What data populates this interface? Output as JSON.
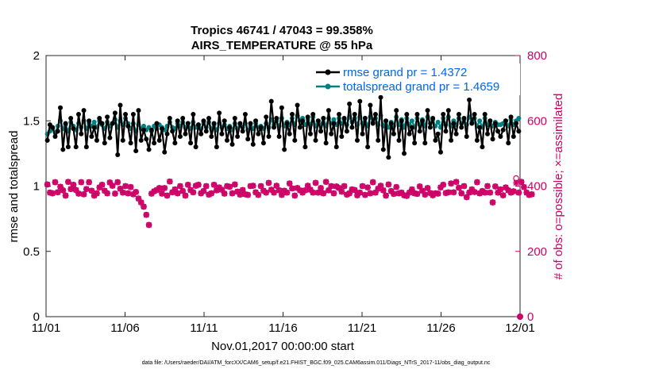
{
  "chart_data": {
    "type": "line",
    "title": "Tropics 46741 / 47043 = 99.358%",
    "subtitle": "AIRS_TEMPERATURE @ 55 hPa",
    "xlabel": "Nov.01,2017 00:00:00 start",
    "ylabel": "rmse and totalspread",
    "ylabel_right": "# of obs: o=possible; ×=assimilated",
    "xlim": [
      0,
      30
    ],
    "ylim": [
      0,
      2
    ],
    "ylim_right": [
      0,
      800
    ],
    "x_tick_values": [
      0,
      5,
      10,
      15,
      20,
      25,
      30
    ],
    "x_tick_labels": [
      "11/01",
      "11/06",
      "11/11",
      "11/16",
      "11/21",
      "11/26",
      "12/01"
    ],
    "y_ticks": [
      "0",
      "0.5",
      "1",
      "1.5",
      "2"
    ],
    "y_tick_values": [
      0,
      0.5,
      1,
      1.5,
      2
    ],
    "y_ticks_right": [
      "0",
      "200",
      "400",
      "600",
      "800"
    ],
    "y_tick_values_right": [
      0,
      200,
      400,
      600,
      800
    ],
    "footer": "data file: /Users/raeder/DAI/ATM_forcXX/CAM6_setup/f.e21.FHIST_BGC.f09_025.CAM6assim.011/Diags_NTrS_2017-11/obs_diag_output.nc",
    "colors": {
      "rmse": "#000000",
      "spread": "#008080",
      "obs": "#cc0066",
      "legend_text": "#0066ee"
    },
    "series": [
      {
        "name": "rmse grand pr = 1.4372",
        "axis": "left",
        "values": [
          1.35,
          1.47,
          1.45,
          1.38,
          1.42,
          1.6,
          1.28,
          1.48,
          1.3,
          1.52,
          1.44,
          1.3,
          1.55,
          1.4,
          1.58,
          1.3,
          1.5,
          1.38,
          1.45,
          1.35,
          1.52,
          1.48,
          1.33,
          1.53,
          1.37,
          1.48,
          1.56,
          1.24,
          1.62,
          1.35,
          1.55,
          1.46,
          1.33,
          1.55,
          1.27,
          1.58,
          1.35,
          1.43,
          1.36,
          1.28,
          1.43,
          1.33,
          1.48,
          1.35,
          1.44,
          1.26,
          1.4,
          1.52,
          1.42,
          1.33,
          1.5,
          1.38,
          1.52,
          1.4,
          1.48,
          1.33,
          1.55,
          1.3,
          1.47,
          1.4,
          1.5,
          1.42,
          1.52,
          1.38,
          1.48,
          1.3,
          1.56,
          1.4,
          1.5,
          1.35,
          1.45,
          1.32,
          1.52,
          1.38,
          1.48,
          1.42,
          1.55,
          1.36,
          1.48,
          1.32,
          1.5,
          1.4,
          1.45,
          1.33,
          1.53,
          1.38,
          1.65,
          1.45,
          1.52,
          1.38,
          1.6,
          1.28,
          1.48,
          1.4,
          1.55,
          1.35,
          1.62,
          1.45,
          1.5,
          1.3,
          1.53,
          1.4,
          1.55,
          1.35,
          1.5,
          1.42,
          1.52,
          1.33,
          1.58,
          1.4,
          1.48,
          1.3,
          1.55,
          1.38,
          1.52,
          1.42,
          1.63,
          1.45,
          1.55,
          1.35,
          1.65,
          1.4,
          1.52,
          1.3,
          1.62,
          1.48,
          1.55,
          1.35,
          1.68,
          1.28,
          1.5,
          1.22,
          1.48,
          1.4,
          1.58,
          1.35,
          1.5,
          1.25,
          1.55,
          1.4,
          1.45,
          1.33,
          1.55,
          1.42,
          1.5,
          1.33,
          1.58,
          1.45,
          1.52,
          1.35,
          1.4,
          1.26,
          1.55,
          1.42,
          1.58,
          1.35,
          1.48,
          1.4,
          1.55,
          1.45,
          1.52,
          1.38,
          1.66,
          1.48,
          1.55,
          1.35,
          1.45,
          1.3,
          1.55,
          1.4,
          1.5,
          1.36,
          1.48,
          1.42,
          1.38,
          1.43,
          1.5,
          1.33,
          1.53,
          1.38,
          1.48,
          1.42
        ]
      },
      {
        "name": "totalspread grand pr = 1.4659",
        "axis": "left",
        "values": [
          1.4,
          1.42,
          1.44,
          1.41,
          1.46,
          1.5,
          1.44,
          1.47,
          1.42,
          1.49,
          1.46,
          1.43,
          1.48,
          1.45,
          1.5,
          1.44,
          1.48,
          1.46,
          1.49,
          1.45,
          1.5,
          1.47,
          1.44,
          1.49,
          1.46,
          1.48,
          1.51,
          1.45,
          1.5,
          1.47,
          1.52,
          1.48,
          1.44,
          1.48,
          1.42,
          1.47,
          1.44,
          1.46,
          1.43,
          1.45,
          1.42,
          1.46,
          1.44,
          1.47,
          1.45,
          1.43,
          1.46,
          1.49,
          1.45,
          1.44,
          1.48,
          1.46,
          1.49,
          1.45,
          1.48,
          1.44,
          1.49,
          1.45,
          1.47,
          1.44,
          1.48,
          1.45,
          1.49,
          1.44,
          1.47,
          1.43,
          1.48,
          1.45,
          1.47,
          1.44,
          1.46,
          1.43,
          1.48,
          1.44,
          1.47,
          1.45,
          1.48,
          1.43,
          1.46,
          1.44,
          1.48,
          1.45,
          1.46,
          1.44,
          1.48,
          1.45,
          1.51,
          1.47,
          1.5,
          1.46,
          1.52,
          1.46,
          1.49,
          1.47,
          1.52,
          1.47,
          1.54,
          1.5,
          1.52,
          1.47,
          1.51,
          1.47,
          1.53,
          1.46,
          1.5,
          1.47,
          1.52,
          1.46,
          1.52,
          1.48,
          1.51,
          1.47,
          1.52,
          1.48,
          1.51,
          1.47,
          1.53,
          1.49,
          1.52,
          1.47,
          1.53,
          1.48,
          1.52,
          1.46,
          1.53,
          1.49,
          1.52,
          1.47,
          1.54,
          1.46,
          1.5,
          1.45,
          1.49,
          1.46,
          1.53,
          1.47,
          1.51,
          1.45,
          1.52,
          1.47,
          1.5,
          1.45,
          1.52,
          1.47,
          1.51,
          1.46,
          1.53,
          1.48,
          1.51,
          1.46,
          1.49,
          1.45,
          1.52,
          1.47,
          1.53,
          1.46,
          1.5,
          1.47,
          1.52,
          1.48,
          1.51,
          1.47,
          1.53,
          1.49,
          1.52,
          1.46,
          1.5,
          1.45,
          1.52,
          1.47,
          1.5,
          1.46,
          1.49,
          1.47,
          1.47,
          1.48,
          1.5,
          1.46,
          1.51,
          1.47,
          1.5,
          1.52
        ]
      },
      {
        "name": "# of obs possible",
        "axis": "right",
        "marker": "o",
        "values": [
          405,
          380,
          378,
          412,
          381,
          398,
          387,
          371,
          413,
          391,
          404,
          388,
          377,
          412,
          375,
          391,
          412,
          386,
          371,
          378,
          396,
          404,
          386,
          378,
          411,
          401,
          377,
          412,
          392,
          380,
          400,
          378,
          397,
          375,
          382,
          362,
          350,
          337,
          312,
          281,
          377,
          384,
          388,
          394,
          377,
          394,
          371,
          414,
          381,
          390,
          378,
          400,
          385,
          371,
          404,
          388,
          381,
          401,
          404,
          378,
          385,
          400,
          374,
          378,
          404,
          387,
          396,
          389,
          377,
          400,
          398,
          378,
          405,
          383,
          374,
          388,
          375,
          373,
          400,
          401,
          381,
          373,
          400,
          386,
          380,
          410,
          389,
          380,
          401,
          387,
          373,
          386,
          380,
          408,
          393,
          371,
          394,
          387,
          380,
          387,
          401,
          389,
          380,
          410,
          380,
          394,
          378,
          413,
          387,
          400,
          378,
          399,
          394,
          383,
          400,
          374,
          378,
          390,
          388,
          372,
          380,
          400,
          373,
          396,
          378,
          412,
          380,
          392,
          401,
          387,
          371,
          405,
          385,
          376,
          397,
          378,
          380,
          372,
          370,
          380,
          390,
          378,
          376,
          399,
          386,
          374,
          394,
          379,
          372,
          378,
          377,
          396,
          404,
          379,
          381,
          408,
          381,
          413,
          395,
          378,
          400,
          366,
          380,
          390,
          382,
          412,
          378,
          385,
          380,
          400,
          380,
          350,
          399,
          380,
          390,
          372,
          396,
          387,
          380,
          384,
          424,
          380,
          413,
          397,
          380,
          373,
          375
        ]
      },
      {
        "name": "# of obs assimilated",
        "axis": "right",
        "marker": "x",
        "values": [
          405,
          380,
          378,
          412,
          381,
          398,
          387,
          371,
          413,
          391,
          404,
          388,
          377,
          412,
          375,
          391,
          412,
          386,
          371,
          378,
          396,
          404,
          386,
          378,
          411,
          401,
          377,
          412,
          392,
          380,
          400,
          378,
          397,
          375,
          382,
          362,
          350,
          337,
          312,
          281,
          377,
          384,
          388,
          394,
          377,
          394,
          371,
          414,
          381,
          390,
          378,
          400,
          385,
          371,
          404,
          388,
          381,
          401,
          404,
          378,
          385,
          400,
          374,
          378,
          404,
          387,
          396,
          389,
          377,
          400,
          398,
          378,
          405,
          383,
          374,
          388,
          375,
          373,
          400,
          401,
          381,
          373,
          400,
          386,
          380,
          410,
          389,
          380,
          401,
          387,
          373,
          386,
          380,
          408,
          393,
          371,
          394,
          387,
          380,
          387,
          401,
          389,
          380,
          410,
          380,
          394,
          378,
          413,
          387,
          400,
          378,
          399,
          394,
          383,
          400,
          374,
          378,
          390,
          388,
          372,
          380,
          400,
          373,
          396,
          378,
          412,
          380,
          392,
          401,
          387,
          371,
          405,
          385,
          376,
          397,
          378,
          380,
          372,
          370,
          380,
          390,
          378,
          376,
          399,
          386,
          374,
          394,
          379,
          372,
          378,
          377,
          396,
          404,
          379,
          381,
          408,
          381,
          413,
          395,
          378,
          400,
          366,
          380,
          390,
          382,
          412,
          378,
          385,
          380,
          400,
          380,
          350,
          399,
          380,
          390,
          372,
          396,
          387,
          380,
          384,
          410,
          380,
          413,
          397,
          380,
          373,
          375
        ]
      }
    ],
    "outlier_obs": {
      "axis": "right",
      "x": 30,
      "value": 0
    }
  }
}
